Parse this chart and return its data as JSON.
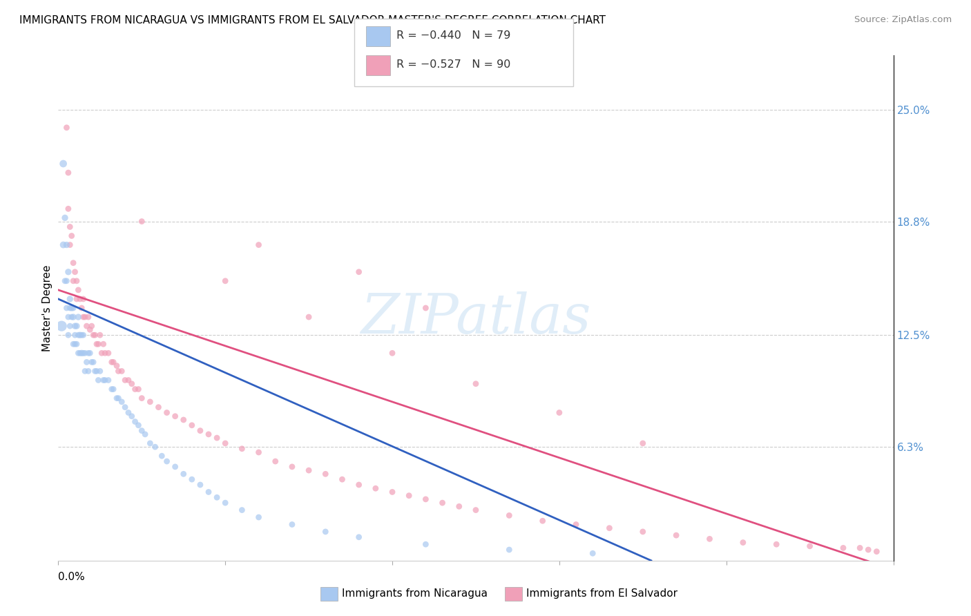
{
  "title": "IMMIGRANTS FROM NICARAGUA VS IMMIGRANTS FROM EL SALVADOR MASTER'S DEGREE CORRELATION CHART",
  "source": "Source: ZipAtlas.com",
  "watermark": "ZIPatlas",
  "ylabel": "Master's Degree",
  "yticks_right": [
    "25.0%",
    "18.8%",
    "12.5%",
    "6.3%"
  ],
  "yticks_right_vals": [
    0.25,
    0.188,
    0.125,
    0.063
  ],
  "legend_blue_R": "-0.440",
  "legend_blue_N": "79",
  "legend_pink_R": "-0.527",
  "legend_pink_N": "90",
  "color_blue": "#a8c8f0",
  "color_pink": "#f0a0b8",
  "color_blue_line": "#3060c0",
  "color_pink_line": "#e05080",
  "color_blue_label": "#5090d0",
  "color_pink_label": "#d04070",
  "color_right_labels": "#5090d0",
  "xmin": 0.0,
  "xmax": 0.5,
  "ymin": 0.0,
  "ymax": 0.28,
  "blue_line_x": [
    0.0,
    0.355
  ],
  "blue_line_y": [
    0.145,
    0.0
  ],
  "pink_line_x": [
    0.0,
    0.5
  ],
  "pink_line_y": [
    0.15,
    -0.005
  ],
  "scatter_blue_x": [
    0.002,
    0.003,
    0.003,
    0.004,
    0.004,
    0.005,
    0.005,
    0.005,
    0.006,
    0.006,
    0.006,
    0.007,
    0.007,
    0.007,
    0.008,
    0.008,
    0.009,
    0.009,
    0.009,
    0.01,
    0.01,
    0.01,
    0.011,
    0.011,
    0.012,
    0.012,
    0.012,
    0.013,
    0.013,
    0.014,
    0.014,
    0.015,
    0.015,
    0.016,
    0.016,
    0.017,
    0.018,
    0.018,
    0.019,
    0.02,
    0.021,
    0.022,
    0.023,
    0.024,
    0.025,
    0.027,
    0.028,
    0.03,
    0.032,
    0.033,
    0.035,
    0.036,
    0.038,
    0.04,
    0.042,
    0.044,
    0.046,
    0.048,
    0.05,
    0.052,
    0.055,
    0.058,
    0.062,
    0.065,
    0.07,
    0.075,
    0.08,
    0.085,
    0.09,
    0.095,
    0.1,
    0.11,
    0.12,
    0.14,
    0.16,
    0.18,
    0.22,
    0.27,
    0.32
  ],
  "scatter_blue_y": [
    0.13,
    0.22,
    0.175,
    0.19,
    0.155,
    0.175,
    0.155,
    0.14,
    0.16,
    0.135,
    0.125,
    0.145,
    0.14,
    0.13,
    0.14,
    0.135,
    0.135,
    0.14,
    0.12,
    0.13,
    0.12,
    0.125,
    0.13,
    0.12,
    0.135,
    0.125,
    0.115,
    0.125,
    0.115,
    0.125,
    0.115,
    0.125,
    0.115,
    0.115,
    0.105,
    0.11,
    0.115,
    0.105,
    0.115,
    0.11,
    0.11,
    0.105,
    0.105,
    0.1,
    0.105,
    0.1,
    0.1,
    0.1,
    0.095,
    0.095,
    0.09,
    0.09,
    0.088,
    0.085,
    0.082,
    0.08,
    0.077,
    0.075,
    0.072,
    0.07,
    0.065,
    0.063,
    0.058,
    0.055,
    0.052,
    0.048,
    0.045,
    0.042,
    0.038,
    0.035,
    0.032,
    0.028,
    0.024,
    0.02,
    0.016,
    0.013,
    0.009,
    0.006,
    0.004
  ],
  "scatter_blue_size": [
    120,
    60,
    50,
    45,
    40,
    45,
    40,
    40,
    45,
    40,
    40,
    45,
    40,
    40,
    45,
    40,
    45,
    40,
    40,
    45,
    40,
    40,
    45,
    40,
    45,
    40,
    40,
    45,
    40,
    40,
    45,
    40,
    40,
    40,
    40,
    40,
    40,
    40,
    40,
    40,
    40,
    40,
    40,
    40,
    40,
    40,
    40,
    40,
    40,
    40,
    40,
    40,
    40,
    40,
    40,
    40,
    40,
    40,
    40,
    40,
    40,
    40,
    40,
    40,
    40,
    40,
    40,
    40,
    40,
    40,
    40,
    40,
    40,
    40,
    40,
    40,
    40,
    40,
    40
  ],
  "scatter_pink_x": [
    0.005,
    0.006,
    0.006,
    0.007,
    0.007,
    0.008,
    0.009,
    0.009,
    0.01,
    0.011,
    0.011,
    0.012,
    0.013,
    0.014,
    0.015,
    0.015,
    0.016,
    0.017,
    0.018,
    0.019,
    0.02,
    0.021,
    0.022,
    0.023,
    0.024,
    0.025,
    0.026,
    0.027,
    0.028,
    0.03,
    0.032,
    0.033,
    0.035,
    0.036,
    0.038,
    0.04,
    0.042,
    0.044,
    0.046,
    0.048,
    0.05,
    0.055,
    0.06,
    0.065,
    0.07,
    0.075,
    0.08,
    0.085,
    0.09,
    0.095,
    0.1,
    0.11,
    0.12,
    0.13,
    0.14,
    0.15,
    0.16,
    0.17,
    0.18,
    0.19,
    0.2,
    0.21,
    0.22,
    0.23,
    0.24,
    0.25,
    0.27,
    0.29,
    0.31,
    0.33,
    0.35,
    0.37,
    0.39,
    0.41,
    0.43,
    0.45,
    0.47,
    0.48,
    0.485,
    0.49,
    0.05,
    0.1,
    0.15,
    0.2,
    0.25,
    0.3,
    0.35,
    0.12,
    0.18,
    0.22
  ],
  "scatter_pink_y": [
    0.24,
    0.215,
    0.195,
    0.185,
    0.175,
    0.18,
    0.165,
    0.155,
    0.16,
    0.155,
    0.145,
    0.15,
    0.145,
    0.14,
    0.145,
    0.135,
    0.135,
    0.13,
    0.135,
    0.128,
    0.13,
    0.125,
    0.125,
    0.12,
    0.12,
    0.125,
    0.115,
    0.12,
    0.115,
    0.115,
    0.11,
    0.11,
    0.108,
    0.105,
    0.105,
    0.1,
    0.1,
    0.098,
    0.095,
    0.095,
    0.09,
    0.088,
    0.085,
    0.082,
    0.08,
    0.078,
    0.075,
    0.072,
    0.07,
    0.068,
    0.065,
    0.062,
    0.06,
    0.055,
    0.052,
    0.05,
    0.048,
    0.045,
    0.042,
    0.04,
    0.038,
    0.036,
    0.034,
    0.032,
    0.03,
    0.028,
    0.025,
    0.022,
    0.02,
    0.018,
    0.016,
    0.014,
    0.012,
    0.01,
    0.009,
    0.008,
    0.007,
    0.007,
    0.006,
    0.005,
    0.188,
    0.155,
    0.135,
    0.115,
    0.098,
    0.082,
    0.065,
    0.175,
    0.16,
    0.14
  ],
  "scatter_pink_size": [
    40,
    40,
    40,
    40,
    40,
    40,
    40,
    40,
    40,
    40,
    40,
    40,
    40,
    40,
    40,
    40,
    40,
    40,
    40,
    40,
    40,
    40,
    40,
    40,
    40,
    40,
    40,
    40,
    40,
    40,
    40,
    40,
    40,
    40,
    40,
    40,
    40,
    40,
    40,
    40,
    40,
    40,
    40,
    40,
    40,
    40,
    40,
    40,
    40,
    40,
    40,
    40,
    40,
    40,
    40,
    40,
    40,
    40,
    40,
    40,
    40,
    40,
    40,
    40,
    40,
    40,
    40,
    40,
    40,
    40,
    40,
    40,
    40,
    40,
    40,
    40,
    40,
    40,
    40,
    40,
    40,
    40,
    40,
    40,
    40,
    40,
    40,
    40,
    40,
    40
  ]
}
